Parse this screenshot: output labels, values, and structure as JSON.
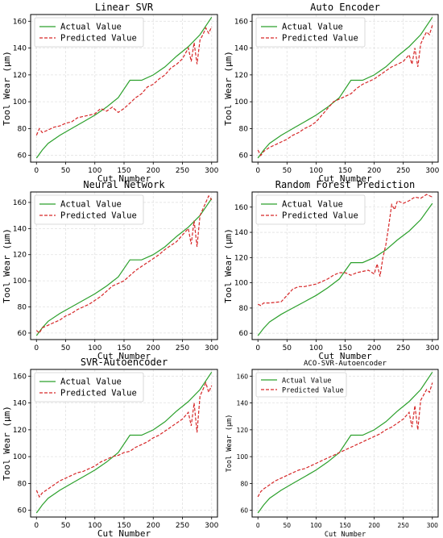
{
  "colors": {
    "actual": "#2ca02c",
    "predicted": "#d62728",
    "grid": "#e2e2e2"
  },
  "chart_data": [
    {
      "type": "line",
      "title": "Linear SVR",
      "xlabel": "Cut Number",
      "ylabel": "Tool Wear (μm)",
      "xlim": [
        -10,
        310
      ],
      "ylim": [
        55,
        165
      ],
      "xticks": [
        0,
        50,
        100,
        150,
        200,
        250,
        300
      ],
      "yticks": [
        60,
        80,
        100,
        120,
        140,
        160
      ],
      "grid": true,
      "legend": "top-left",
      "series": [
        {
          "name": "Actual Value",
          "style": "solid",
          "x": [
            0,
            10,
            20,
            40,
            60,
            80,
            100,
            120,
            140,
            160,
            180,
            200,
            220,
            240,
            260,
            280,
            300
          ],
          "y": [
            58,
            64,
            69,
            75,
            80,
            85,
            90,
            96,
            103,
            116,
            116,
            120,
            126,
            134,
            141,
            150,
            163
          ]
        },
        {
          "name": "Predicted Value",
          "style": "dashed",
          "x": [
            0,
            5,
            10,
            20,
            30,
            40,
            50,
            60,
            70,
            80,
            90,
            100,
            110,
            120,
            130,
            140,
            150,
            160,
            170,
            180,
            190,
            200,
            210,
            220,
            230,
            240,
            250,
            260,
            265,
            270,
            275,
            280,
            285,
            290,
            295,
            300
          ],
          "y": [
            75,
            80,
            77,
            79,
            81,
            82,
            84,
            85,
            88,
            89,
            90,
            91,
            95,
            93,
            96,
            92,
            95,
            99,
            103,
            106,
            111,
            113,
            117,
            120,
            125,
            128,
            132,
            140,
            130,
            144,
            128,
            146,
            150,
            155,
            151,
            156
          ]
        }
      ]
    },
    {
      "type": "line",
      "title": "Auto Encoder",
      "xlabel": "Cut Number",
      "ylabel": "Tool Wear (μm)",
      "xlim": [
        -10,
        310
      ],
      "ylim": [
        55,
        165
      ],
      "xticks": [
        0,
        50,
        100,
        150,
        200,
        250,
        300
      ],
      "yticks": [
        60,
        80,
        100,
        120,
        140,
        160
      ],
      "grid": true,
      "legend": "top-left",
      "series": [
        {
          "name": "Actual Value",
          "style": "solid",
          "x": [
            0,
            10,
            20,
            40,
            60,
            80,
            100,
            120,
            140,
            160,
            180,
            200,
            220,
            240,
            260,
            280,
            300
          ],
          "y": [
            58,
            64,
            69,
            75,
            80,
            85,
            90,
            96,
            103,
            116,
            116,
            120,
            126,
            134,
            141,
            150,
            163
          ]
        },
        {
          "name": "Predicted Value",
          "style": "dashed",
          "x": [
            0,
            5,
            10,
            20,
            30,
            40,
            50,
            60,
            70,
            80,
            90,
            100,
            110,
            120,
            130,
            140,
            150,
            160,
            170,
            180,
            190,
            200,
            210,
            220,
            230,
            240,
            250,
            260,
            265,
            270,
            275,
            280,
            285,
            290,
            295,
            300
          ],
          "y": [
            64,
            60,
            63,
            66,
            68,
            70,
            72,
            75,
            77,
            80,
            82,
            85,
            90,
            95,
            100,
            102,
            104,
            106,
            110,
            113,
            115,
            117,
            120,
            123,
            126,
            128,
            130,
            135,
            128,
            140,
            126,
            143,
            148,
            152,
            150,
            157
          ]
        }
      ]
    },
    {
      "type": "line",
      "title": "Neural Network",
      "xlabel": "Cut Number",
      "ylabel": "Tool Wear (μm)",
      "xlim": [
        -10,
        310
      ],
      "ylim": [
        55,
        168
      ],
      "xticks": [
        0,
        50,
        100,
        150,
        200,
        250,
        300
      ],
      "yticks": [
        60,
        80,
        100,
        120,
        140,
        160
      ],
      "grid": true,
      "legend": "top-left",
      "series": [
        {
          "name": "Actual Value",
          "style": "solid",
          "x": [
            0,
            10,
            20,
            40,
            60,
            80,
            100,
            120,
            140,
            160,
            180,
            200,
            220,
            240,
            260,
            280,
            300
          ],
          "y": [
            58,
            64,
            69,
            75,
            80,
            85,
            90,
            96,
            103,
            116,
            116,
            120,
            126,
            134,
            141,
            150,
            163
          ]
        },
        {
          "name": "Predicted Value",
          "style": "dashed",
          "x": [
            0,
            5,
            10,
            20,
            30,
            40,
            50,
            60,
            70,
            80,
            90,
            100,
            110,
            120,
            130,
            140,
            150,
            160,
            170,
            180,
            190,
            200,
            210,
            220,
            230,
            240,
            250,
            260,
            265,
            270,
            275,
            280,
            285,
            290,
            295,
            300
          ],
          "y": [
            62,
            60,
            64,
            66,
            68,
            70,
            73,
            75,
            78,
            80,
            82,
            85,
            88,
            92,
            96,
            98,
            100,
            104,
            108,
            111,
            114,
            117,
            120,
            124,
            127,
            130,
            135,
            140,
            128,
            146,
            126,
            150,
            155,
            160,
            165,
            162
          ]
        }
      ]
    },
    {
      "type": "line",
      "title": "Random Forest Prediction",
      "xlabel": "Cut Number",
      "ylabel": "Tool Wear (μm)",
      "xlim": [
        -10,
        310
      ],
      "ylim": [
        55,
        172
      ],
      "xticks": [
        0,
        50,
        100,
        150,
        200,
        250,
        300
      ],
      "yticks": [
        60,
        80,
        100,
        120,
        140,
        160
      ],
      "grid": true,
      "legend": "top-left",
      "series": [
        {
          "name": "Actual Value",
          "style": "solid",
          "x": [
            0,
            10,
            20,
            40,
            60,
            80,
            100,
            120,
            140,
            160,
            180,
            200,
            220,
            240,
            260,
            280,
            300
          ],
          "y": [
            58,
            64,
            69,
            75,
            80,
            85,
            90,
            96,
            103,
            116,
            116,
            120,
            126,
            134,
            141,
            150,
            163
          ]
        },
        {
          "name": "Predicted Value",
          "style": "dashed",
          "x": [
            0,
            5,
            10,
            20,
            40,
            50,
            60,
            70,
            80,
            90,
            100,
            110,
            120,
            130,
            140,
            150,
            160,
            170,
            180,
            190,
            200,
            205,
            210,
            215,
            220,
            225,
            230,
            235,
            240,
            250,
            260,
            270,
            280,
            290,
            300
          ],
          "y": [
            83,
            82,
            84,
            84,
            85,
            90,
            95,
            97,
            97,
            98,
            99,
            101,
            103,
            106,
            108,
            108,
            106,
            108,
            109,
            110,
            107,
            115,
            105,
            120,
            130,
            145,
            162,
            158,
            165,
            163,
            165,
            168,
            167,
            170,
            168
          ]
        }
      ]
    },
    {
      "type": "line",
      "title": "SVR-Autoencoder",
      "xlabel": "Cut Number",
      "ylabel": "Tool Wear (μm)",
      "xlim": [
        -10,
        310
      ],
      "ylim": [
        55,
        165
      ],
      "xticks": [
        0,
        50,
        100,
        150,
        200,
        250,
        300
      ],
      "yticks": [
        60,
        80,
        100,
        120,
        140,
        160
      ],
      "grid": true,
      "legend": "top-left",
      "series": [
        {
          "name": "Actual Value",
          "style": "solid",
          "x": [
            0,
            10,
            20,
            40,
            60,
            80,
            100,
            120,
            140,
            160,
            180,
            200,
            220,
            240,
            260,
            280,
            300
          ],
          "y": [
            58,
            64,
            69,
            75,
            80,
            85,
            90,
            96,
            103,
            116,
            116,
            120,
            126,
            134,
            141,
            150,
            163
          ]
        },
        {
          "name": "Predicted Value",
          "style": "dashed",
          "x": [
            0,
            5,
            10,
            20,
            30,
            40,
            50,
            60,
            70,
            80,
            90,
            100,
            110,
            120,
            130,
            140,
            150,
            160,
            170,
            180,
            190,
            200,
            210,
            220,
            230,
            240,
            250,
            260,
            265,
            270,
            275,
            280,
            285,
            290,
            295,
            300
          ],
          "y": [
            75,
            70,
            73,
            76,
            79,
            82,
            84,
            86,
            88,
            89,
            91,
            93,
            96,
            98,
            100,
            101,
            103,
            104,
            107,
            109,
            111,
            114,
            116,
            119,
            122,
            125,
            128,
            133,
            123,
            140,
            118,
            145,
            150,
            155,
            148,
            153
          ]
        }
      ]
    },
    {
      "type": "line",
      "title": "ACO-SVR-Autoencoder",
      "xlabel": "Cut Number",
      "ylabel": "Tool Wear (μm)",
      "xlim": [
        -10,
        310
      ],
      "ylim": [
        55,
        165
      ],
      "xticks": [
        0,
        50,
        100,
        150,
        200,
        250,
        300
      ],
      "yticks": [
        60,
        80,
        100,
        120,
        140,
        160
      ],
      "grid": true,
      "legend": "top-left",
      "series": [
        {
          "name": "Actual Value",
          "style": "solid",
          "x": [
            0,
            10,
            20,
            40,
            60,
            80,
            100,
            120,
            140,
            160,
            180,
            200,
            220,
            240,
            260,
            280,
            300
          ],
          "y": [
            58,
            64,
            69,
            75,
            80,
            85,
            90,
            96,
            103,
            116,
            116,
            120,
            126,
            134,
            141,
            150,
            163
          ]
        },
        {
          "name": "Predicted Value",
          "style": "dashed",
          "x": [
            0,
            5,
            10,
            20,
            30,
            40,
            50,
            60,
            70,
            80,
            90,
            100,
            110,
            120,
            130,
            140,
            150,
            160,
            170,
            180,
            190,
            200,
            210,
            220,
            230,
            240,
            250,
            260,
            265,
            270,
            275,
            280,
            285,
            290,
            295,
            300
          ],
          "y": [
            70,
            74,
            76,
            79,
            82,
            84,
            86,
            88,
            90,
            91,
            93,
            95,
            97,
            99,
            101,
            103,
            105,
            107,
            109,
            111,
            113,
            115,
            117,
            120,
            122,
            125,
            128,
            133,
            122,
            138,
            120,
            142,
            146,
            150,
            148,
            155
          ]
        }
      ]
    }
  ]
}
